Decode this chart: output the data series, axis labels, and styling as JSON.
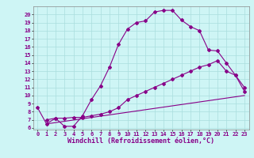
{
  "line1_x": [
    0,
    1,
    2,
    3,
    4,
    5,
    6,
    7,
    8,
    9,
    10,
    11,
    12,
    13,
    14,
    15,
    16,
    17,
    18,
    19,
    20,
    21,
    22,
    23
  ],
  "line1_y": [
    8.5,
    6.5,
    7.2,
    6.2,
    6.2,
    7.5,
    9.5,
    11.2,
    13.5,
    16.3,
    18.2,
    19.0,
    19.2,
    20.3,
    20.5,
    20.5,
    19.3,
    18.5,
    18.0,
    15.6,
    15.5,
    14.0,
    12.5,
    10.5
  ],
  "line2_x": [
    1,
    2,
    3,
    4,
    5,
    6,
    7,
    8,
    9,
    10,
    11,
    12,
    13,
    14,
    15,
    16,
    17,
    18,
    19,
    20,
    21,
    22,
    23
  ],
  "line2_y": [
    7.0,
    7.2,
    7.2,
    7.3,
    7.3,
    7.5,
    7.7,
    8.0,
    8.5,
    9.5,
    10.0,
    10.5,
    11.0,
    11.5,
    12.0,
    12.5,
    13.0,
    13.5,
    13.8,
    14.3,
    13.0,
    12.5,
    11.0
  ],
  "line3_x": [
    1,
    23
  ],
  "line3_y": [
    6.5,
    10.0
  ],
  "color": "#880088",
  "bg_color": "#cef5f5",
  "grid_color": "#aadddd",
  "xlabel": "Windchill (Refroidissement éolien,°C)",
  "xlim_min": -0.5,
  "xlim_max": 23.5,
  "ylim_min": 5.8,
  "ylim_max": 21.0,
  "xticks": [
    0,
    1,
    2,
    3,
    4,
    5,
    6,
    7,
    8,
    9,
    10,
    11,
    12,
    13,
    14,
    15,
    16,
    17,
    18,
    19,
    20,
    21,
    22,
    23
  ],
  "yticks": [
    6,
    7,
    8,
    9,
    10,
    11,
    12,
    13,
    14,
    15,
    16,
    17,
    18,
    19,
    20
  ],
  "tick_fontsize": 5.0,
  "xlabel_fontsize": 6.0,
  "marker": "D",
  "marker_size": 2.0,
  "linewidth": 0.8
}
